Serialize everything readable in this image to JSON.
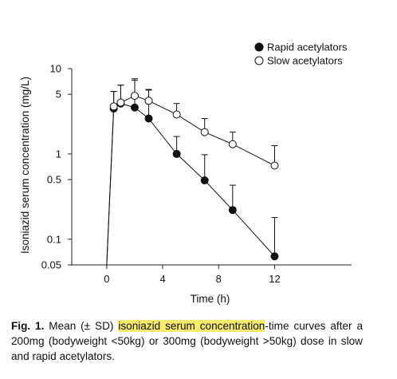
{
  "chart_data": {
    "type": "line",
    "xlabel": "Time (h)",
    "ylabel": "Isoniazid serum concentration (mg/L)",
    "x_scale": "linear",
    "y_scale": "log",
    "xlim": [
      -2.5,
      17.5
    ],
    "ylim": [
      0.05,
      10
    ],
    "xticks": [
      0,
      4,
      8,
      12
    ],
    "yticks": [
      0.05,
      0.1,
      0.5,
      1,
      5,
      10
    ],
    "ytick_labels": [
      "0.05",
      "0.1",
      "0.5",
      "1",
      "5",
      "10"
    ],
    "legend_position": "top-right",
    "series": [
      {
        "name": "Rapid acetylators",
        "marker": "filled-circle",
        "color": "#111111",
        "x": [
          0,
          0.5,
          1,
          2,
          3,
          5,
          7,
          9,
          12
        ],
        "y": [
          0.05,
          3.4,
          3.9,
          3.5,
          2.6,
          1.0,
          0.49,
          0.22,
          0.063
        ],
        "error_upper": [
          null,
          5.4,
          6.4,
          7.3,
          5.6,
          1.6,
          0.98,
          0.43,
          0.18
        ]
      },
      {
        "name": "Slow acetylators",
        "marker": "open-circle",
        "color": "#111111",
        "x": [
          0,
          0.5,
          1,
          2,
          3,
          5,
          7,
          9,
          12
        ],
        "y": [
          0.05,
          3.6,
          4.0,
          4.8,
          4.2,
          2.9,
          1.8,
          1.3,
          0.73
        ],
        "error_upper": [
          null,
          5.4,
          6.4,
          7.6,
          5.7,
          3.9,
          2.6,
          1.8,
          1.25
        ]
      }
    ]
  },
  "caption": {
    "label": "Fig. 1.",
    "text_before": " Mean (± SD) ",
    "highlight": "isoniazid serum concentration",
    "text_after": "-time curves after a 200mg (bodyweight <50kg) or 300mg (bodyweight >50kg) dose in slow and rapid acetylators."
  }
}
